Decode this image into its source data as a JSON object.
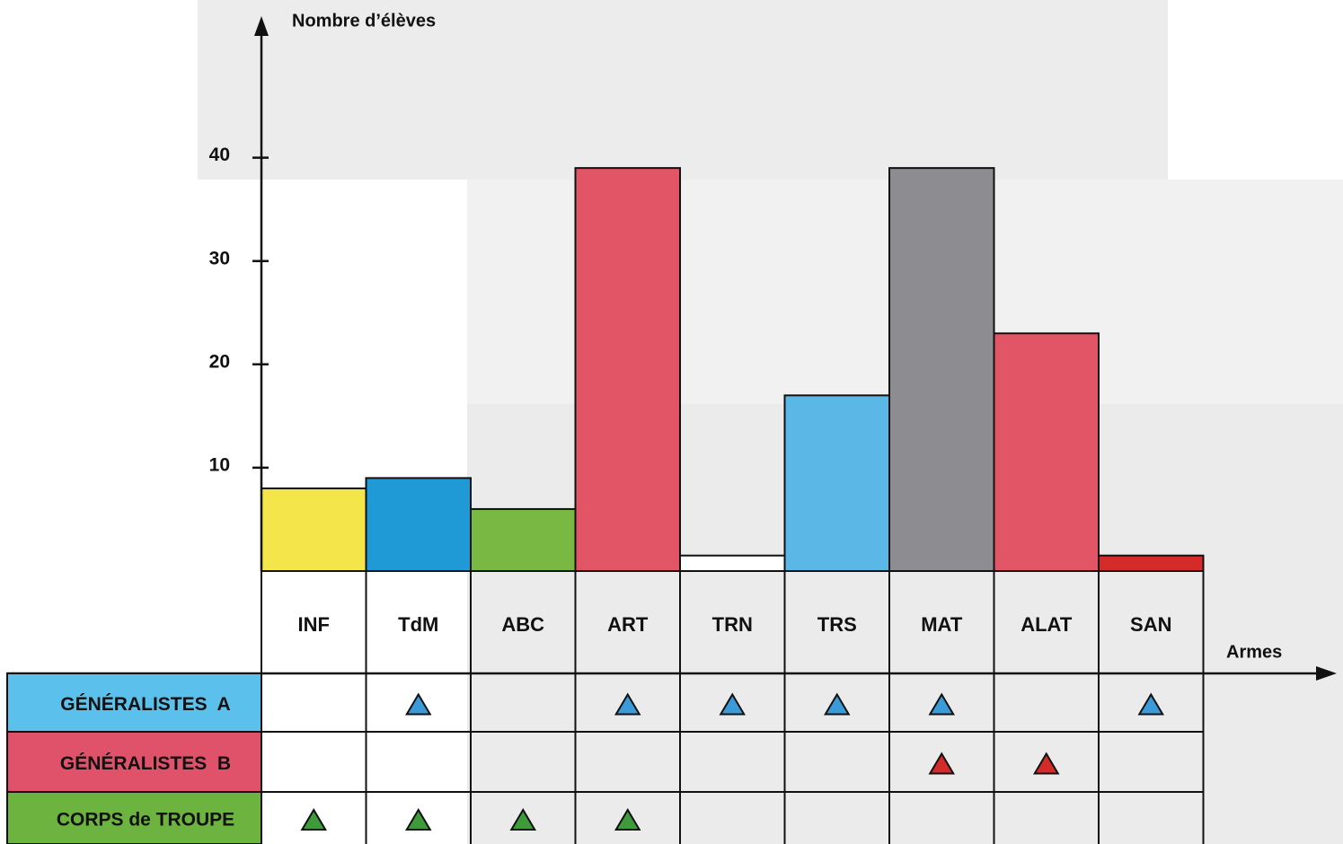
{
  "chart_data": {
    "type": "bar",
    "y_label": "Nombre d’élèves",
    "x_label": "Armes",
    "categories": [
      "INF",
      "TdM",
      "ABC",
      "ART",
      "TRN",
      "TRS",
      "MAT",
      "ALAT",
      "SAN"
    ],
    "values": [
      8,
      9,
      6,
      39,
      1.5,
      17,
      39,
      23,
      1.5
    ],
    "colors": [
      "#f3e54a",
      "#1f9ad6",
      "#79b843",
      "#e25566",
      "#ffffff",
      "#5bb8e6",
      "#8d8d91",
      "#e25566",
      "#d42a2a"
    ],
    "ylim": [
      0,
      53
    ],
    "yticks": [
      10,
      20,
      30,
      40
    ],
    "rows": [
      {
        "label": "GÉNÉRALISTES  A",
        "color": "#5bc0eb",
        "mark_color": "#3a9bd8",
        "marks": [
          false,
          true,
          false,
          true,
          true,
          true,
          true,
          false,
          true
        ]
      },
      {
        "label": "GÉNÉRALISTES  B",
        "color": "#e0526a",
        "mark_color": "#d42a2a",
        "marks": [
          false,
          false,
          false,
          false,
          false,
          false,
          true,
          true,
          false
        ]
      },
      {
        "label": "CORPS de TROUPE",
        "color": "#6db33f",
        "mark_color": "#3f9a3a",
        "marks": [
          true,
          true,
          true,
          true,
          false,
          false,
          false,
          false,
          false
        ]
      }
    ]
  }
}
